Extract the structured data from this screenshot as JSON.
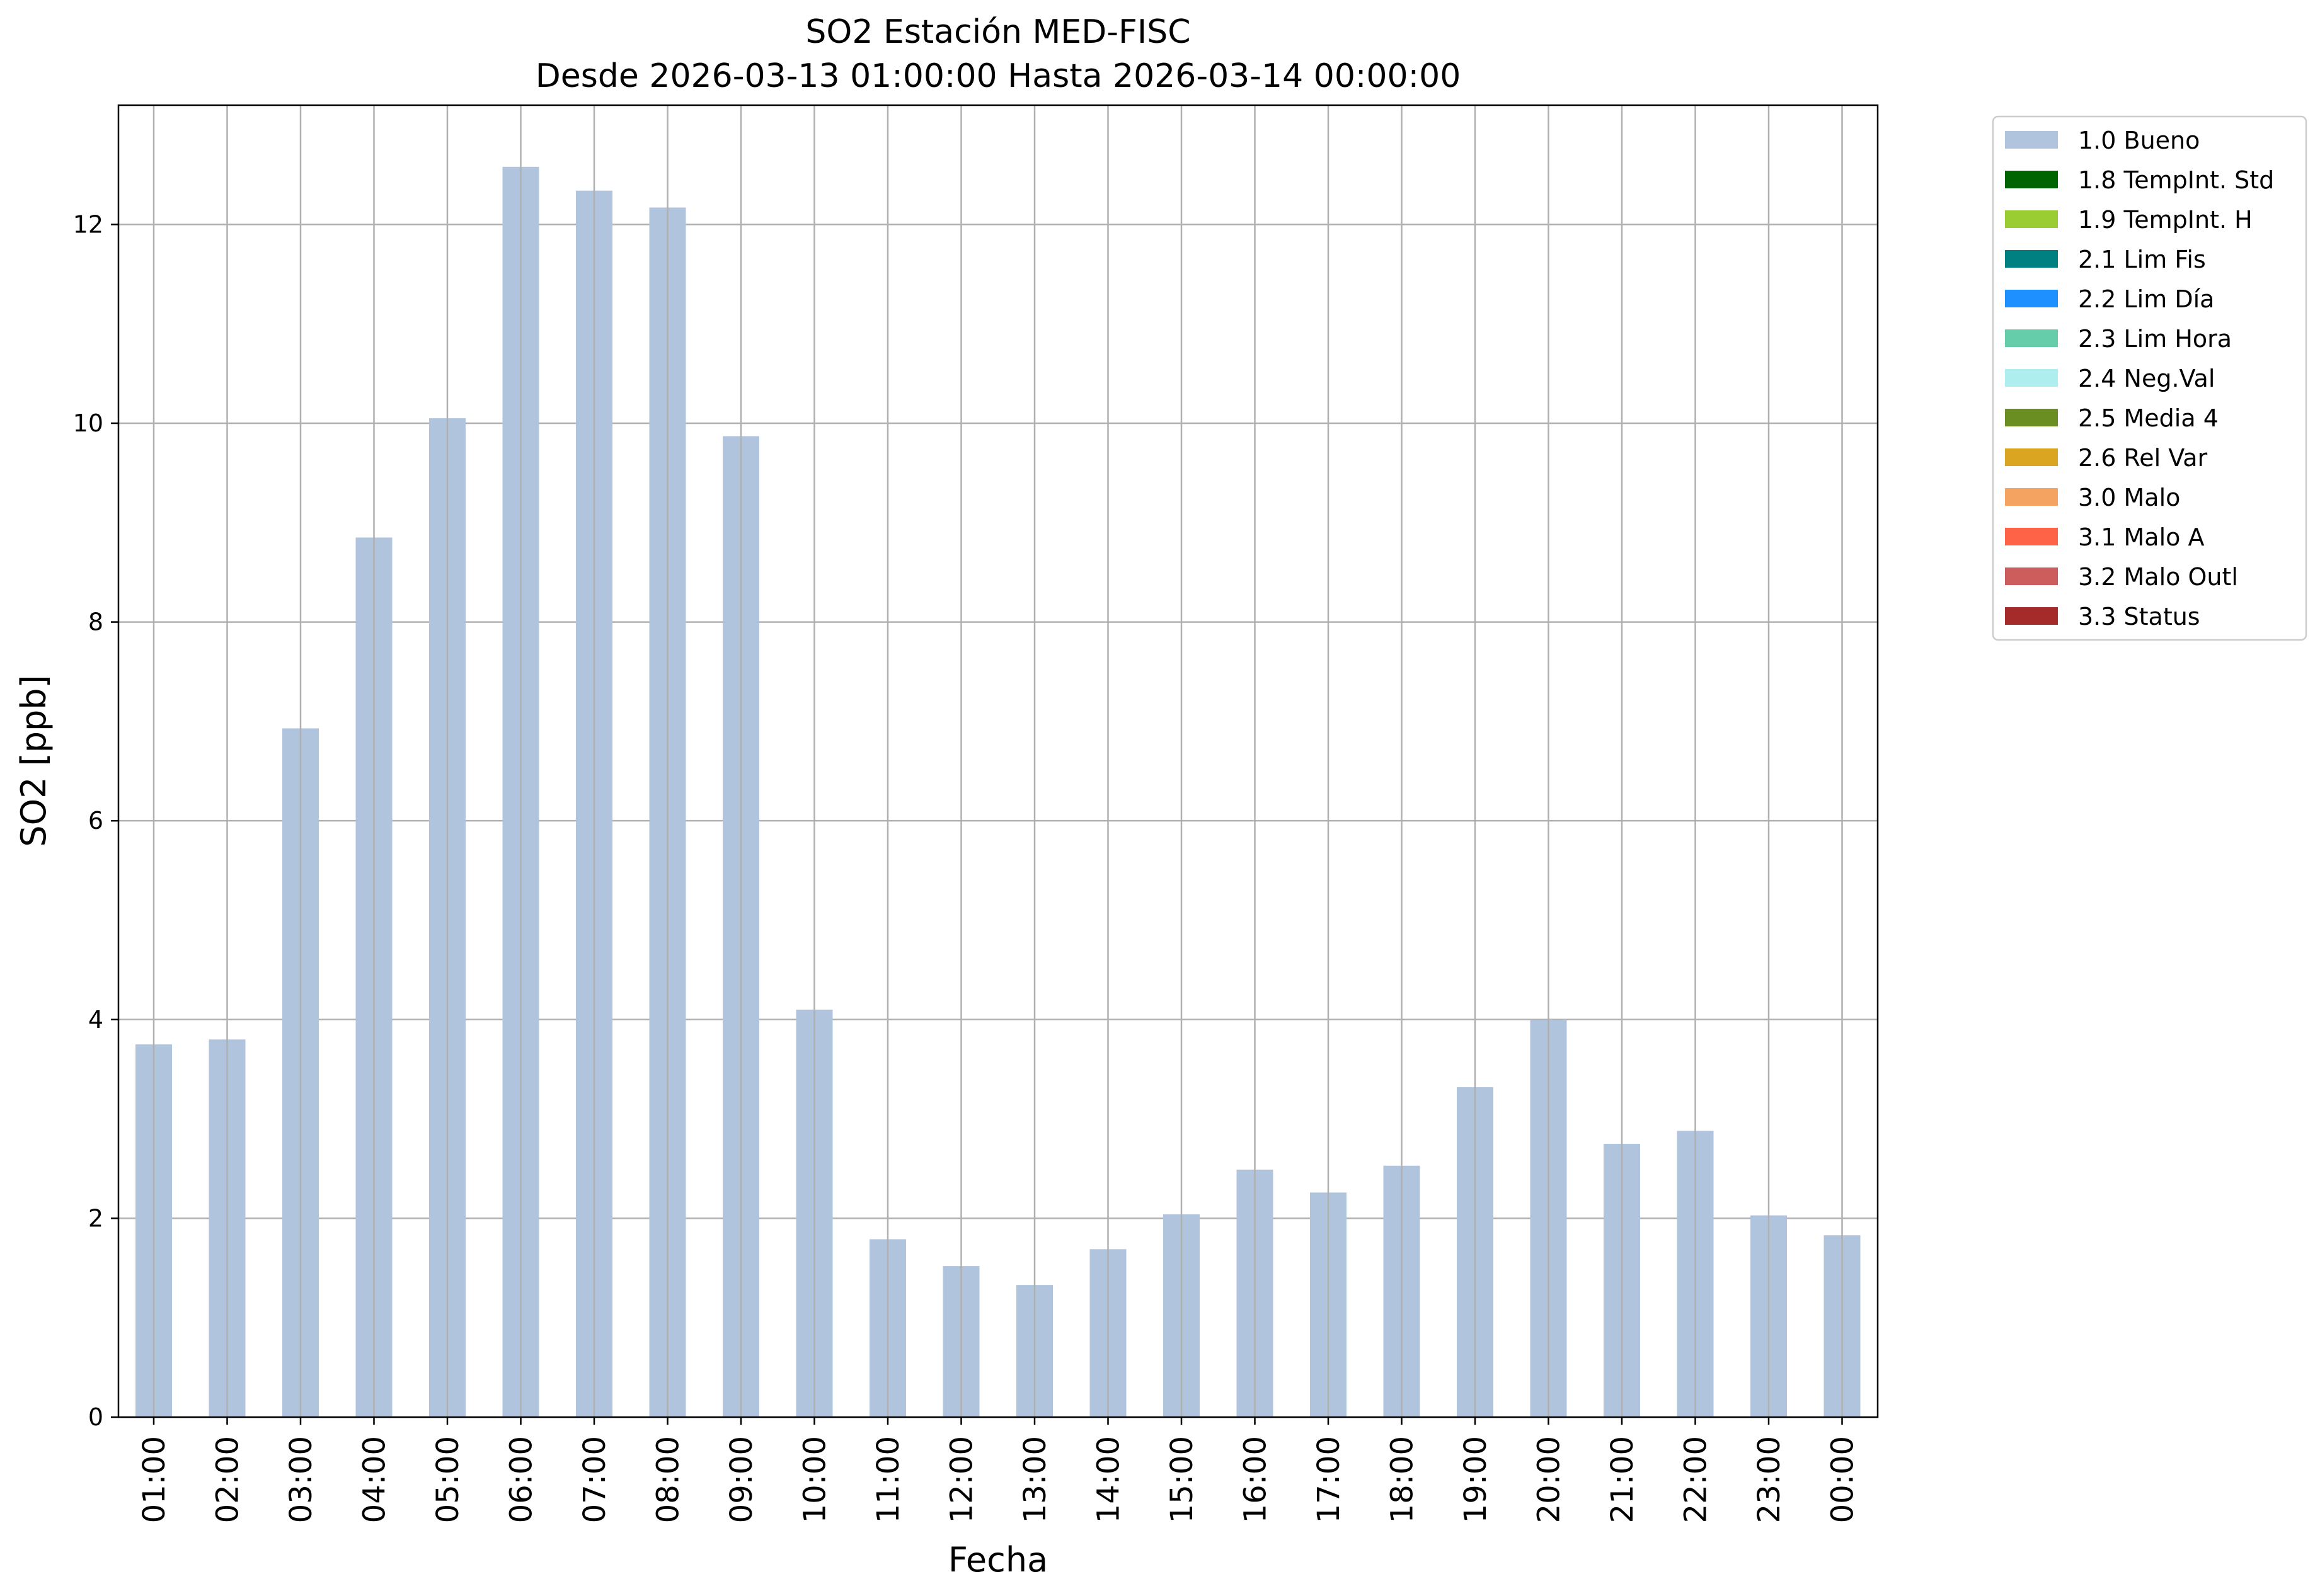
{
  "chart_data": {
    "type": "bar",
    "title": "SO2 Estación MED-FISC",
    "subtitle": "Desde 2026-03-13 01:00:00 Hasta 2026-03-14 00:00:00",
    "xlabel": "Fecha",
    "ylabel": "SO2 [ppb]",
    "categories": [
      "01:00",
      "02:00",
      "03:00",
      "04:00",
      "05:00",
      "06:00",
      "07:00",
      "08:00",
      "09:00",
      "10:00",
      "11:00",
      "12:00",
      "13:00",
      "14:00",
      "15:00",
      "16:00",
      "17:00",
      "18:00",
      "19:00",
      "20:00",
      "21:00",
      "22:00",
      "23:00",
      "00:00"
    ],
    "series": [
      {
        "name": "1.0 Bueno",
        "color": "#b0c4de",
        "values": [
          3.75,
          3.8,
          6.93,
          8.85,
          10.05,
          12.58,
          12.34,
          12.17,
          9.87,
          4.1,
          1.79,
          1.52,
          1.33,
          1.69,
          2.04,
          2.49,
          2.26,
          2.53,
          3.32,
          4.0,
          2.75,
          2.88,
          2.03,
          1.83
        ]
      }
    ],
    "ylim": [
      0,
      13.2
    ],
    "yticks": [
      0,
      2,
      4,
      6,
      8,
      10,
      12
    ],
    "grid": true,
    "legend_position": "outside-right-top",
    "legend": [
      {
        "label": "1.0 Bueno",
        "color": "#b0c4de"
      },
      {
        "label": "1.8 TempInt. Std",
        "color": "#006400"
      },
      {
        "label": "1.9 TempInt. H",
        "color": "#9acd32"
      },
      {
        "label": "2.1 Lim Fis",
        "color": "#008080"
      },
      {
        "label": "2.2 Lim Día",
        "color": "#1e90ff"
      },
      {
        "label": "2.3 Lim Hora",
        "color": "#66cdaa"
      },
      {
        "label": "2.4 Neg.Val",
        "color": "#afeeee"
      },
      {
        "label": "2.5 Media 4",
        "color": "#6b8e23"
      },
      {
        "label": "2.6 Rel Var",
        "color": "#daa520"
      },
      {
        "label": "3.0 Malo",
        "color": "#f4a460"
      },
      {
        "label": "3.1 Malo A",
        "color": "#ff6347"
      },
      {
        "label": "3.2 Malo Outl",
        "color": "#cd5c5c"
      },
      {
        "label": "3.3 Status",
        "color": "#a52a2a"
      }
    ]
  }
}
